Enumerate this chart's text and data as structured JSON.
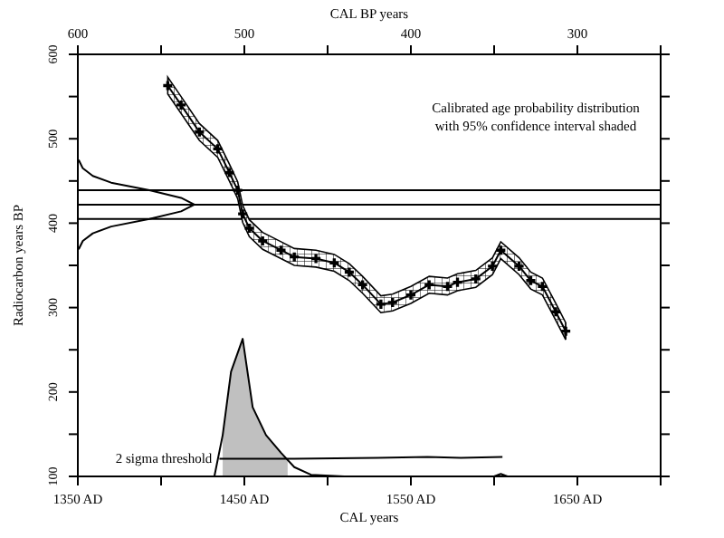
{
  "chart_data": {
    "type": "line",
    "xlabel": "CAL years",
    "x2label": "CAL BP years",
    "ylabel": "Radiocarbon years BP",
    "xlim": [
      1350,
      1700
    ],
    "ylim": [
      100,
      600
    ],
    "xticks": [
      {
        "value": 1350,
        "label": "1350 AD"
      },
      {
        "value": 1400,
        "label": null
      },
      {
        "value": 1450,
        "label": "1450 AD"
      },
      {
        "value": 1500,
        "label": null
      },
      {
        "value": 1550,
        "label": "1550 AD"
      },
      {
        "value": 1600,
        "label": null
      },
      {
        "value": 1650,
        "label": "1650 AD"
      },
      {
        "value": 1700,
        "label": null
      }
    ],
    "x2lim": [
      600,
      250
    ],
    "x2ticks": [
      600,
      {
        "value": 550,
        "label": null
      },
      500,
      {
        "value": 450,
        "label": null
      },
      400,
      {
        "value": 350,
        "label": null
      },
      300,
      {
        "value": 250,
        "label": null
      }
    ],
    "yticks": [
      100,
      {
        "value": 150,
        "label": null
      },
      200,
      {
        "value": 250,
        "label": null
      },
      300,
      {
        "value": 350,
        "label": null
      },
      400,
      {
        "value": 450,
        "label": null
      },
      500,
      {
        "value": 550,
        "label": null
      },
      600
    ],
    "grid": false,
    "series": [
      {
        "color": "#000000",
        "marker": "cross",
        "x": [
          1404,
          1412,
          1423,
          1434,
          1441,
          1446,
          1449,
          1453,
          1461,
          1472,
          1480,
          1493,
          1504,
          1513,
          1521,
          1532,
          1539,
          1550,
          1561,
          1572,
          1578,
          1589,
          1599,
          1604,
          1615,
          1622,
          1629,
          1637,
          1643
        ],
        "values": [
          563,
          540,
          508,
          488,
          460,
          439,
          411,
          394,
          379,
          368,
          360,
          358,
          353,
          342,
          327,
          304,
          306,
          315,
          327,
          325,
          330,
          334,
          349,
          368,
          349,
          332,
          325,
          295,
          272
        ],
        "lower": [
          553,
          530,
          498,
          478,
          450,
          429,
          401,
          384,
          369,
          358,
          350,
          348,
          343,
          332,
          317,
          294,
          296,
          305,
          317,
          315,
          320,
          324,
          339,
          358,
          339,
          322,
          315,
          285,
          262
        ],
        "upper": [
          573,
          550,
          518,
          498,
          470,
          449,
          421,
          404,
          389,
          378,
          370,
          368,
          363,
          352,
          337,
          314,
          316,
          325,
          337,
          335,
          340,
          344,
          359,
          378,
          359,
          342,
          335,
          305,
          282
        ]
      },
      {
        "color": "#000000",
        "x": [
          1350.5,
          1353,
          1359,
          1370,
          1393,
          1412,
          1420,
          1412,
          1393,
          1370,
          1359,
          1353,
          1350.5
        ],
        "values": [
          475,
          465,
          456,
          448,
          439,
          430,
          422,
          414,
          405,
          396,
          388,
          379,
          369
        ]
      },
      {
        "type": "area",
        "color": "#c0c0c0",
        "x": [
          1437,
          1442,
          1449,
          1455,
          1463,
          1472,
          1476
        ],
        "values": [
          149,
          224,
          263,
          182,
          149,
          128,
          120
        ]
      },
      {
        "type": "line",
        "color": "#000000",
        "x": [
          1432,
          1437,
          1442,
          1449,
          1455,
          1463,
          1472,
          1480,
          1490,
          1510,
          1600,
          1604,
          1608
        ],
        "values": [
          100,
          149,
          224,
          263,
          182,
          149,
          128,
          111,
          102,
          100,
          100,
          103,
          100
        ]
      },
      {
        "type": "line",
        "color": "#000000",
        "x": [
          1435,
          1480,
          1530,
          1560,
          1580,
          1605
        ],
        "values": [
          121,
          121,
          122,
          123,
          122,
          123
        ]
      }
    ],
    "ref_lines": [
      {
        "axis": "y",
        "value": 439
      },
      {
        "axis": "y",
        "value": 422
      },
      {
        "axis": "y",
        "value": 405
      }
    ],
    "annotations": [
      "Calibrated age probability distribution\nwith 95% confidence interval shaded",
      {
        "text": "2 sigma threshold",
        "x": 1435,
        "y": 121
      }
    ]
  }
}
